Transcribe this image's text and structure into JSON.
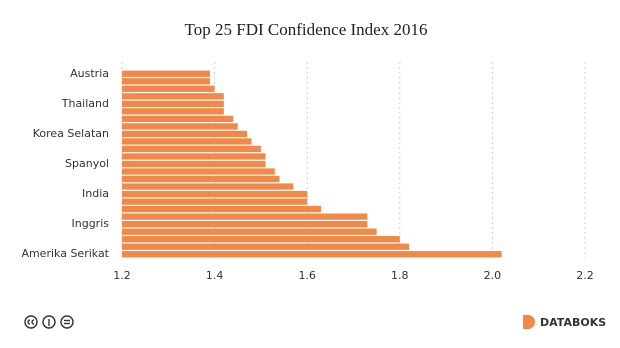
{
  "chart_data": {
    "type": "bar",
    "orientation": "horizontal",
    "title": "Top 25 FDI Confidence Index 2016",
    "categories": [
      "Austria",
      null,
      null,
      null,
      "Thailand",
      null,
      null,
      null,
      "Korea Selatan",
      null,
      null,
      null,
      "Spanyol",
      null,
      null,
      null,
      "India",
      null,
      null,
      null,
      "Inggris",
      null,
      null,
      null,
      "Amerika Serikat"
    ],
    "values": [
      1.39,
      1.39,
      1.4,
      1.42,
      1.42,
      1.42,
      1.44,
      1.45,
      1.47,
      1.48,
      1.5,
      1.51,
      1.51,
      1.53,
      1.54,
      1.57,
      1.6,
      1.6,
      1.63,
      1.73,
      1.73,
      1.75,
      1.8,
      1.82,
      2.02
    ],
    "color": "#f0894a",
    "xlim": [
      1.2,
      2.2
    ],
    "xticks": [
      1.2,
      1.4,
      1.6,
      1.8,
      {
        "value": 2.0,
        "label": "2.0"
      },
      2.2
    ],
    "grid": true
  },
  "brand": "DATABOKS"
}
